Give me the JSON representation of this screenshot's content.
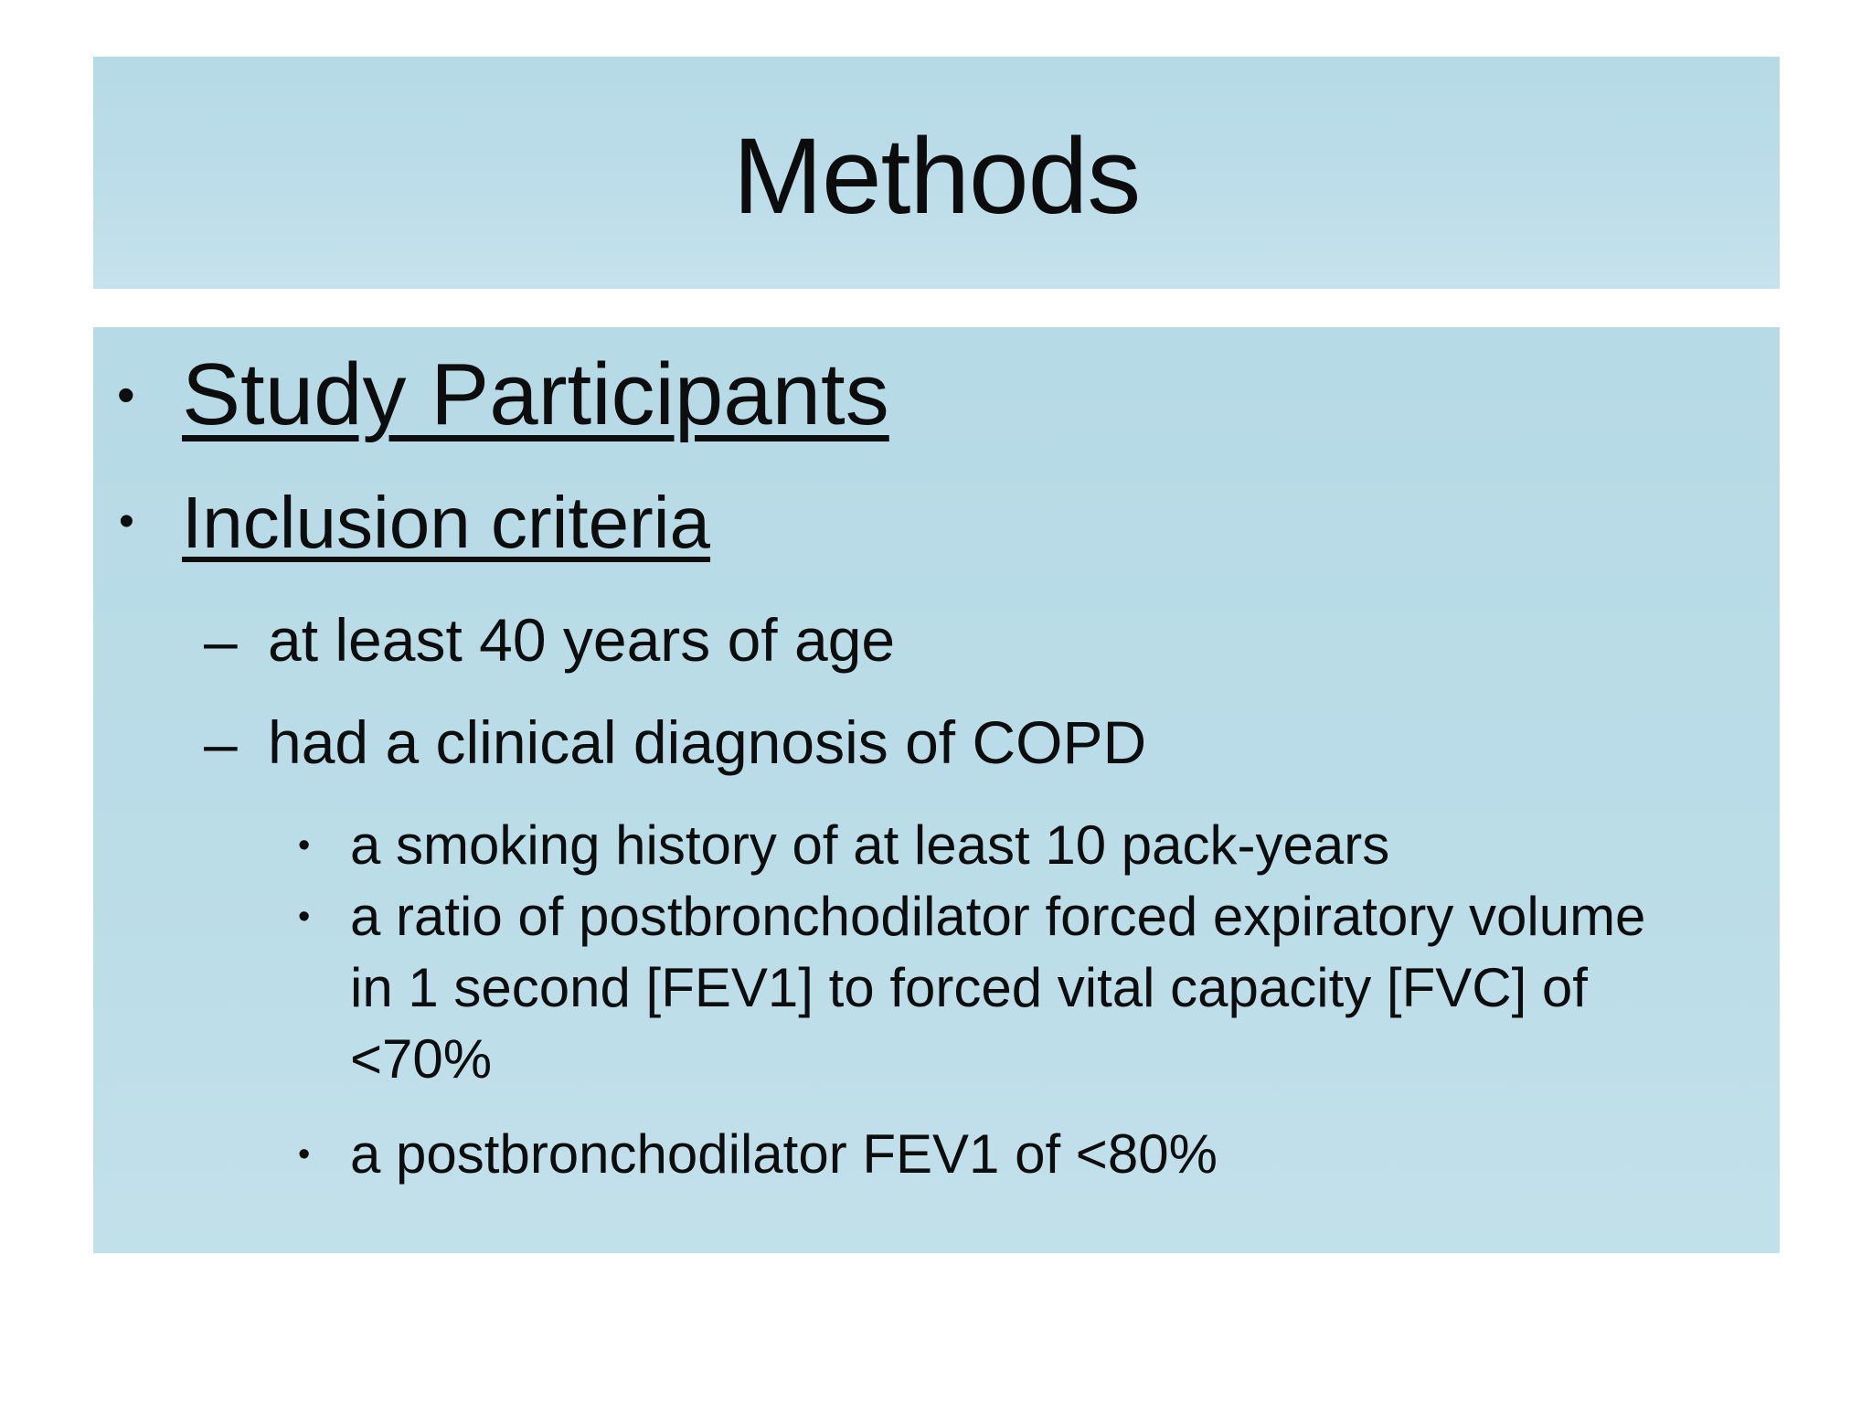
{
  "slide": {
    "title": "Methods"
  },
  "markers": {
    "dot": "•",
    "dash": "–"
  },
  "bullets": {
    "study_participants": "Study Participants",
    "inclusion_criteria": "Inclusion criteria",
    "age": "at least 40 years of age",
    "copd": "had a clinical diagnosis of COPD",
    "smoking": "a smoking history of at least 10 pack-years",
    "fev_ratio_lines": [
      "a ratio of postbronchodilator forced expiratory volume",
      "in 1 second [FEV1] to forced vital capacity [FVC] of",
      "<70%"
    ],
    "fev80": "a postbronchodilator FEV1 of <80%"
  },
  "colors": {
    "page_bg": "#ffffff",
    "box_bg": "#b9dce7",
    "text": "#0d0d0d"
  }
}
